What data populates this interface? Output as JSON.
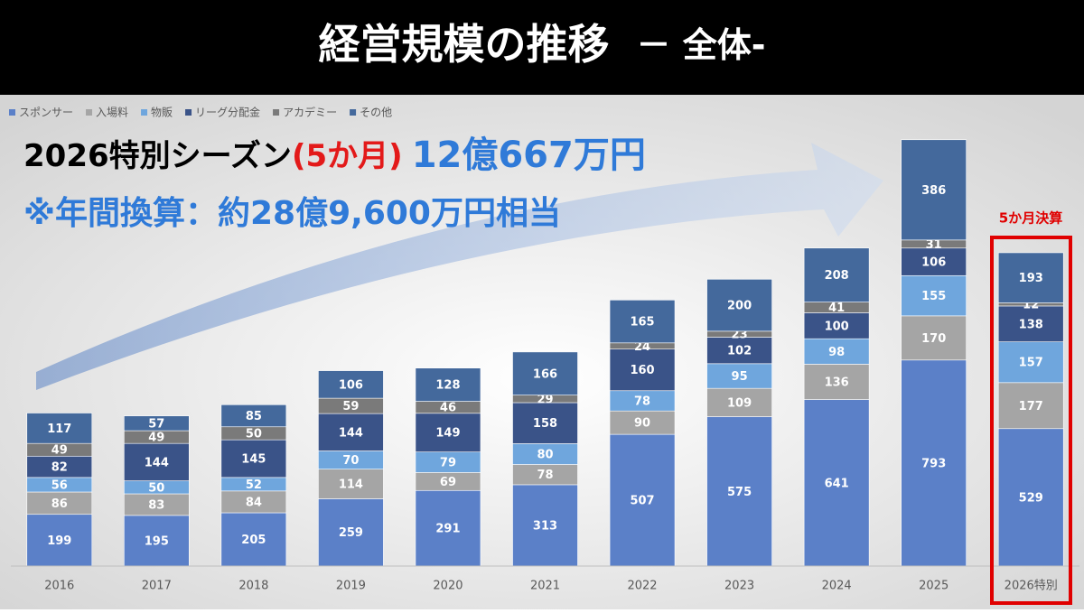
{
  "chart_data": {
    "type": "bar",
    "stacked": true,
    "title": "経営規模の推移",
    "subtitle": "－ 全体-",
    "annotations": {
      "line1": [
        "2026特別シーズン",
        "(5か月)",
        "12億667万円"
      ],
      "line2": "※年間換算：約28億9,600万円相当",
      "box_label": "5か月決算"
    },
    "categories": [
      "2016",
      "2017",
      "2018",
      "2019",
      "2020",
      "2021",
      "2022",
      "2023",
      "2024",
      "2025",
      "2026特別"
    ],
    "ylim": [
      0,
      1800
    ],
    "series": [
      {
        "name": "スポンサー",
        "color": "#5b80c8",
        "values": [
          199,
          195,
          205,
          259,
          291,
          313,
          507,
          575,
          641,
          793,
          529
        ]
      },
      {
        "name": "入場料",
        "color": "#a5a5a5",
        "values": [
          86,
          83,
          84,
          114,
          69,
          78,
          90,
          109,
          136,
          170,
          177
        ]
      },
      {
        "name": "物販",
        "color": "#6fa6dd",
        "values": [
          56,
          50,
          52,
          70,
          79,
          80,
          78,
          95,
          98,
          155,
          157
        ]
      },
      {
        "name": "リーグ分配金",
        "color": "#3a5388",
        "values": [
          82,
          144,
          145,
          144,
          149,
          158,
          160,
          102,
          100,
          106,
          138
        ]
      },
      {
        "name": "アカデミー",
        "color": "#7a7a7a",
        "values": [
          49,
          49,
          50,
          59,
          46,
          29,
          24,
          23,
          41,
          31,
          12
        ]
      },
      {
        "name": "その他",
        "color": "#44699c",
        "values": [
          117,
          57,
          85,
          106,
          128,
          166,
          165,
          200,
          208,
          386,
          193
        ]
      }
    ]
  }
}
